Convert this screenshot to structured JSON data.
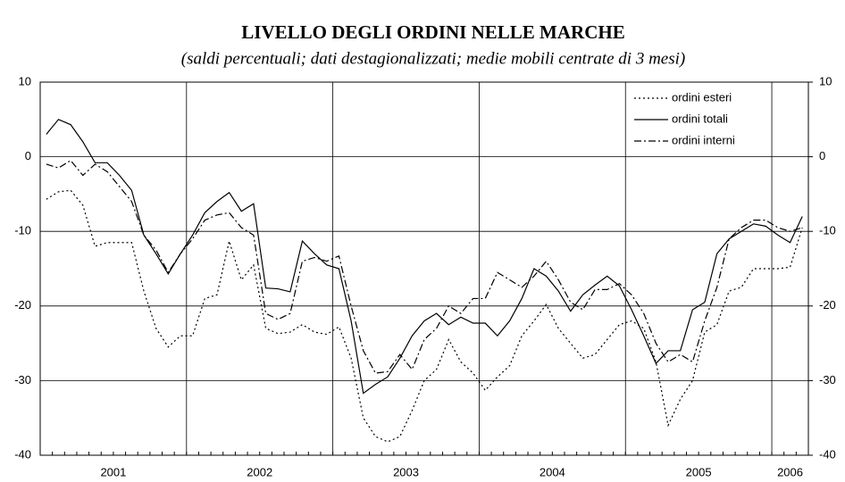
{
  "chart_data": {
    "type": "line",
    "title": "LIVELLO DEGLI ORDINI NELLE MARCHE",
    "subtitle": "(saldi percentuali; dati destagionalizzati; medie mobili centrate di 3 mesi)",
    "categories": [
      null,
      null,
      null,
      null,
      null,
      null,
      "2001",
      null,
      null,
      null,
      null,
      null,
      null,
      null,
      null,
      null,
      null,
      null,
      "2002",
      null,
      null,
      null,
      null,
      null,
      null,
      null,
      null,
      null,
      null,
      null,
      "2003",
      null,
      null,
      null,
      null,
      null,
      null,
      null,
      null,
      null,
      null,
      null,
      "2004",
      null,
      null,
      null,
      null,
      null,
      null,
      null,
      null,
      null,
      null,
      null,
      "2005",
      null,
      null,
      null,
      null,
      null,
      null,
      "2006",
      null
    ],
    "series": [
      {
        "name": "ordini esteri",
        "color": "#000000",
        "line_style": "dotted",
        "values": [
          -5.7,
          -4.7,
          -4.5,
          -6.5,
          -12,
          -11.5,
          -11.5,
          -11.5,
          -18,
          -23,
          -25.5,
          -24,
          -24,
          -19,
          -18.5,
          -11.3,
          -16.5,
          -14.5,
          -23,
          -23.7,
          -23.5,
          -22.5,
          -23.5,
          -23.8,
          -22.8,
          -27,
          -35,
          -37.5,
          -38.2,
          -37.5,
          -34,
          -30,
          -28.5,
          -24.5,
          -27.5,
          -29,
          -31.3,
          -29.5,
          -28,
          -24,
          -22,
          -19.8,
          -23,
          -25,
          -27,
          -26.5,
          -24.5,
          -22.5,
          -22,
          -23,
          -27.5,
          -36,
          -32.5,
          -30,
          -23.5,
          -22.5,
          -18,
          -17.5,
          -15,
          -15,
          -15,
          -14.8,
          -9.5
        ]
      },
      {
        "name": "ordini totali",
        "color": "#000000",
        "line_style": "solid",
        "values": [
          3,
          5,
          4.3,
          2,
          -0.8,
          -0.8,
          -2.5,
          -4.5,
          -10.5,
          -13,
          -15.7,
          -13,
          -10.5,
          -7.5,
          -6,
          -4.8,
          -7.3,
          -6.3,
          -17.6,
          -17.7,
          -18.1,
          -11.3,
          -13,
          -14.5,
          -15,
          -22,
          -31.7,
          -30.5,
          -29.5,
          -27,
          -24,
          -22,
          -21,
          -22.5,
          -21.5,
          -22.3,
          -22.3,
          -24,
          -22,
          -19,
          -15,
          -16,
          -18,
          -20.7,
          -18.5,
          -17.2,
          -16,
          -17.3,
          -20.5,
          -24,
          -27.7,
          -26,
          -26,
          -20.5,
          -19.5,
          -13,
          -11,
          -10,
          -9,
          -9.3,
          -10.5,
          -11.5,
          -8
        ]
      },
      {
        "name": "ordini interni",
        "color": "#000000",
        "line_style": "dashdot",
        "values": [
          -1,
          -1.5,
          -0.5,
          -2.5,
          -1,
          -2,
          -4,
          -6,
          -10.5,
          -12.5,
          -15.5,
          -13,
          -11,
          -8.5,
          -7.8,
          -7.5,
          -9.5,
          -10.5,
          -21,
          -21.8,
          -21,
          -14,
          -13.5,
          -14,
          -13.3,
          -20,
          -26,
          -29,
          -28.8,
          -26.5,
          -28.5,
          -24.5,
          -23,
          -20,
          -21,
          -19,
          -19,
          -15.5,
          -16.5,
          -17.5,
          -16,
          -14,
          -16.5,
          -19.5,
          -20.5,
          -17.8,
          -17.8,
          -17,
          -18.5,
          -21,
          -25,
          -27.5,
          -26.5,
          -27.5,
          -22,
          -17.5,
          -11,
          -9.5,
          -8.5,
          -8.5,
          -9.5,
          -10,
          -9.5
        ]
      }
    ],
    "ylim": [
      -40,
      10
    ],
    "yticks": [
      -40,
      -30,
      -20,
      -10,
      0,
      10
    ],
    "y2lim": [
      -40,
      10
    ],
    "y2ticks": [
      -40,
      -30,
      -20,
      -10,
      0,
      10
    ],
    "grid": true,
    "legend": "upper right"
  }
}
